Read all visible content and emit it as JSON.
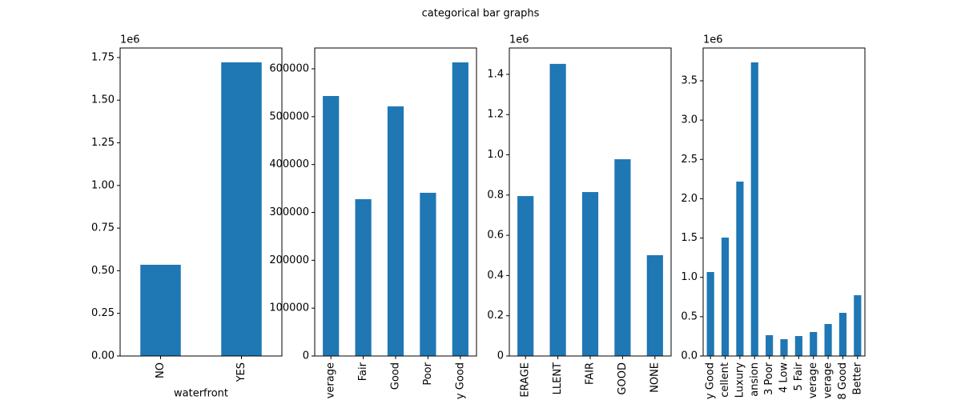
{
  "title": "categorical bar graphs",
  "chart_data": [
    {
      "type": "bar",
      "color": "#1f77b4",
      "xlabel": "waterfront",
      "yaxis_offset": "1e6",
      "categories": [
        "NO",
        "YES"
      ],
      "values": [
        535000,
        1722000
      ],
      "ylim": [
        0,
        1806000
      ],
      "yticks": [
        {
          "value": 0,
          "label": "0.00"
        },
        {
          "value": 250000,
          "label": "0.25"
        },
        {
          "value": 500000,
          "label": "0.50"
        },
        {
          "value": 750000,
          "label": "0.75"
        },
        {
          "value": 1000000,
          "label": "1.00"
        },
        {
          "value": 1250000,
          "label": "1.25"
        },
        {
          "value": 1500000,
          "label": "1.50"
        },
        {
          "value": 1750000,
          "label": "1.75"
        }
      ]
    },
    {
      "type": "bar",
      "color": "#1f77b4",
      "categories": [
        "verage",
        "Fair",
        "Good",
        "Poor",
        "y Good"
      ],
      "values": [
        543200,
        327600,
        521500,
        341000,
        613400
      ],
      "ylim": [
        0,
        643500
      ],
      "yticks": [
        0,
        100000,
        200000,
        300000,
        400000,
        500000,
        600000
      ]
    },
    {
      "type": "bar",
      "color": "#1f77b4",
      "yaxis_offset": "1e6",
      "categories": [
        "ERAGE",
        "LLENT",
        "FAIR",
        "GOOD",
        "NONE"
      ],
      "values": [
        795000,
        1452000,
        815000,
        978000,
        501000
      ],
      "ylim": [
        0,
        1531000
      ],
      "yticks": [
        0,
        {
          "value": 200000,
          "label": "0.2"
        },
        {
          "value": 400000,
          "label": "0.4"
        },
        {
          "value": 600000,
          "label": "0.6"
        },
        {
          "value": 800000,
          "label": "0.8"
        },
        {
          "value": 1000000,
          "label": "1.0"
        },
        {
          "value": 1200000,
          "label": "1.2"
        },
        {
          "value": 1400000,
          "label": "1.4"
        }
      ]
    },
    {
      "type": "bar",
      "color": "#1f77b4",
      "yaxis_offset": "1e6",
      "categories": [
        "y Good",
        "cellent",
        "Luxury",
        "ansion",
        "3 Poor",
        "4 Low",
        "5 Fair",
        "verage",
        "verage",
        "8 Good",
        "Better"
      ],
      "values": [
        1068000,
        1506000,
        2218000,
        3734000,
        265000,
        214000,
        254000,
        305000,
        407000,
        549000,
        773000
      ],
      "ylim": [
        0,
        3917000
      ],
      "yticks": [
        {
          "value": 0,
          "label": "0.0"
        },
        {
          "value": 500000,
          "label": "0.5"
        },
        {
          "value": 1000000,
          "label": "1.0"
        },
        {
          "value": 1500000,
          "label": "1.5"
        },
        {
          "value": 2000000,
          "label": "2.0"
        },
        {
          "value": 2500000,
          "label": "2.5"
        },
        {
          "value": 3000000,
          "label": "3.0"
        },
        {
          "value": 3500000,
          "label": "3.5"
        }
      ]
    }
  ]
}
